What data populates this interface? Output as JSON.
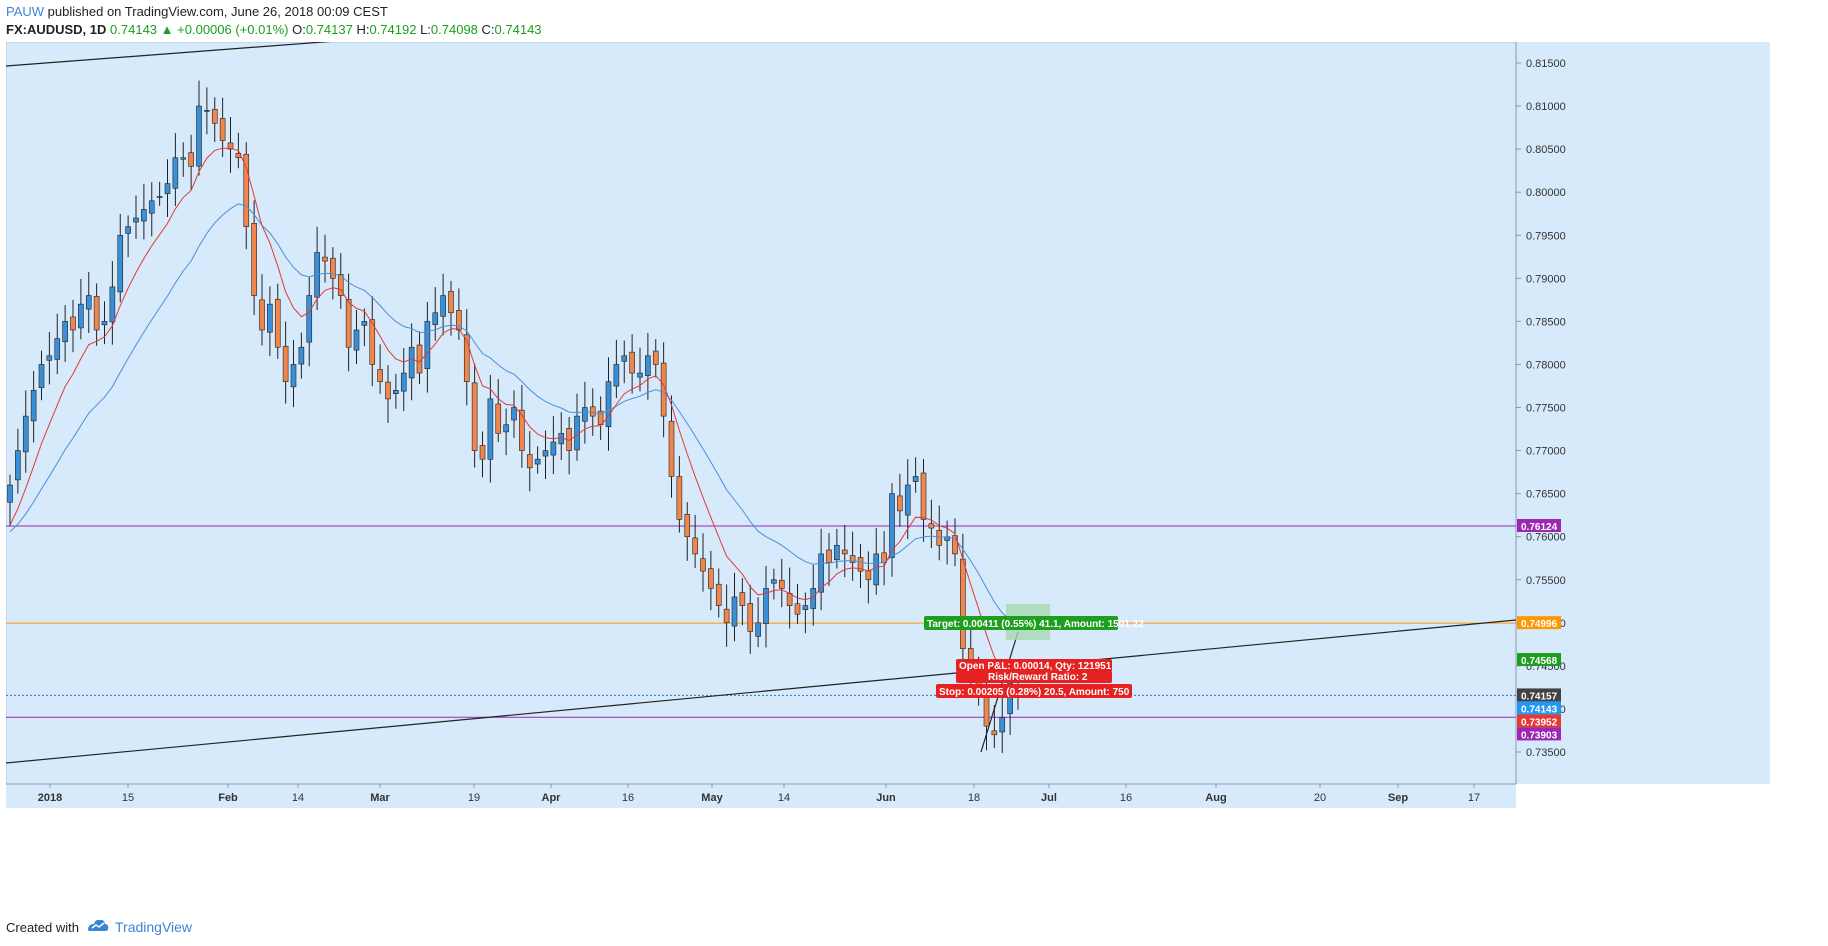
{
  "header": {
    "author": "PAUW",
    "published_text": "published on TradingView.com, June 26, 2018 00:09 CEST",
    "symbol": "FX:AUDUSD, 1D",
    "last": "0.74143",
    "change": "+0.00006 (+0.01%)",
    "open_label": "O:",
    "open": "0.74137",
    "high_label": "H:",
    "high": "0.74192",
    "low_label": "L:",
    "low": "0.74098",
    "close_label": "C:",
    "close": "0.74143",
    "arrow": "▲"
  },
  "price_axis": {
    "ticks": [
      "0.81500",
      "0.81000",
      "0.80500",
      "0.80000",
      "0.79500",
      "0.79000",
      "0.78500",
      "0.78000",
      "0.77500",
      "0.77000",
      "0.76500",
      "0.76000",
      "0.75500",
      "0.75000",
      "0.74500",
      "0.74000",
      "0.73500"
    ],
    "tick_values": [
      0.815,
      0.81,
      0.805,
      0.8,
      0.795,
      0.79,
      0.785,
      0.78,
      0.775,
      0.77,
      0.765,
      0.76,
      0.755,
      0.75,
      0.745,
      0.74,
      0.735
    ],
    "badges": [
      {
        "label": "0.76124",
        "value": 0.76124,
        "color": "#9c27b0"
      },
      {
        "label": "0.74996",
        "value": 0.74996,
        "color": "#ff9800"
      },
      {
        "label": "0.74568",
        "value": 0.74568,
        "color": "#1e9e1e"
      },
      {
        "label": "0.74157",
        "value": 0.74157,
        "color": "#424242"
      },
      {
        "label": "0.74143",
        "value": 0.74143,
        "color": "#2196f3"
      },
      {
        "label": "0.73952",
        "value": 0.73952,
        "color": "#e53935"
      },
      {
        "label": "0.73903",
        "value": 0.73903,
        "color": "#9c27b0"
      }
    ]
  },
  "time_axis": {
    "labels": [
      "2018",
      "15",
      "Feb",
      "14",
      "Mar",
      "19",
      "Apr",
      "16",
      "May",
      "14",
      "Jun",
      "18",
      "Jul",
      "16",
      "Aug",
      "20",
      "Sep",
      "17"
    ]
  },
  "position_tool": {
    "target_text": "Target: 0.00411 (0.55%) 41.1, Amount: 1501.22",
    "open_text": "Open P&L: 0.00014, Qty: 121951",
    "rr_text": "Risk/Reward Ratio: 2",
    "stop_text": "Stop: 0.00205 (0.28%) 20.5, Amount: 750"
  },
  "colors": {
    "chart_bg": "#d6eafb",
    "bull": "#3a8fd6",
    "bear": "#f0864c",
    "ema_fast": "#e53935",
    "ema_slow": "#4a90d9",
    "h_line_purple": "#9c27b0",
    "h_line_orange": "#ff9800"
  },
  "footer": {
    "created_with": "Created with",
    "brand": "TradingView"
  }
}
